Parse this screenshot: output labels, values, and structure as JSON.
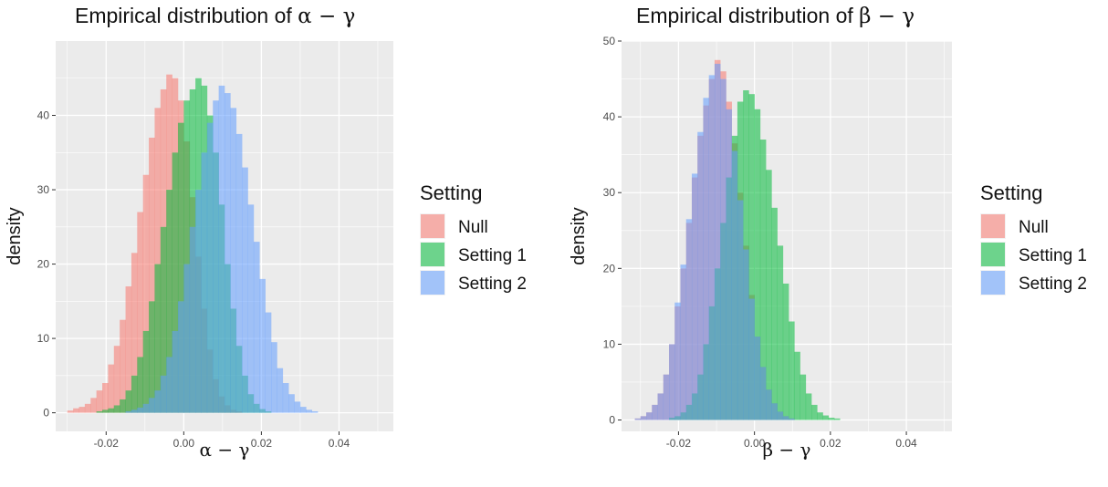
{
  "colors": {
    "panel_bg": "#EBEBEB",
    "grid": "#FFFFFF",
    "null": "#F8766D",
    "setting1": "#00BA38",
    "setting2": "#619CFF",
    "fill_alpha": 0.55
  },
  "chart_data": [
    {
      "type": "histogram",
      "title_prefix": "Empirical distribution of ",
      "title_expr": "α − γ",
      "xlabel": "α − γ",
      "ylabel": "density",
      "xlim": [
        -0.033,
        0.054
      ],
      "ylim": [
        -2.5,
        50
      ],
      "xticks": [
        -0.02,
        0.0,
        0.02,
        0.04
      ],
      "xtick_labels": [
        "-0.02",
        "0.00",
        "0.02",
        "0.04"
      ],
      "yticks": [
        0,
        10,
        20,
        30,
        40
      ],
      "ytick_labels": [
        "0",
        "10",
        "20",
        "30",
        "40"
      ],
      "grid": true,
      "legend": {
        "title": "Setting",
        "position": "right",
        "entries": [
          "Null",
          "Setting 1",
          "Setting 2"
        ]
      },
      "bin_width": 0.0015,
      "series": [
        {
          "name": "Null",
          "bin_start": -0.03,
          "values": [
            0.3,
            0.6,
            0.8,
            1.2,
            2,
            3,
            4,
            6.5,
            9,
            12.5,
            17,
            21.5,
            27,
            32,
            37,
            41,
            43.5,
            45.5,
            45,
            42,
            36.5,
            29,
            21,
            14,
            8.5,
            4.5,
            2.2,
            1,
            0.4,
            0.2
          ]
        },
        {
          "name": "Setting 1",
          "bin_start": -0.0225,
          "values": [
            0.2,
            0.4,
            0.6,
            1,
            1.8,
            3,
            5,
            7.5,
            11,
            15,
            20,
            25,
            30,
            35,
            39,
            42,
            43.5,
            45,
            44,
            40,
            35,
            28,
            20,
            14,
            9,
            5,
            2.5,
            1.2,
            0.5,
            0.2
          ]
        },
        {
          "name": "Setting 2",
          "bin_start": -0.015,
          "values": [
            0.2,
            0.4,
            0.7,
            1.2,
            2,
            3,
            5,
            7.5,
            11,
            15,
            20,
            25,
            30,
            35,
            39,
            42,
            44,
            43,
            41,
            37.5,
            33,
            28,
            23,
            18,
            13.5,
            9.5,
            6,
            4,
            2.5,
            1.5,
            0.8,
            0.4,
            0.2
          ]
        }
      ]
    },
    {
      "type": "histogram",
      "title_prefix": "Empirical distribution of ",
      "title_expr": "β − γ",
      "xlabel": "β − γ",
      "ylabel": "density",
      "xlim": [
        -0.035,
        0.052
      ],
      "ylim": [
        -1.5,
        50
      ],
      "xticks": [
        -0.02,
        0.0,
        0.02,
        0.04
      ],
      "xtick_labels": [
        "-0.02",
        "0.00",
        "0.02",
        "0.04"
      ],
      "yticks": [
        0,
        10,
        20,
        30,
        40,
        50
      ],
      "ytick_labels": [
        "0",
        "10",
        "20",
        "30",
        "40",
        "50"
      ],
      "grid": true,
      "legend": {
        "title": "Setting",
        "position": "right",
        "entries": [
          "Null",
          "Setting 1",
          "Setting 2"
        ]
      },
      "bin_width": 0.0015,
      "series": [
        {
          "name": "Null",
          "bin_start": -0.0315,
          "values": [
            0.2,
            0.5,
            1,
            2,
            3.5,
            6,
            10,
            15,
            20,
            26,
            32,
            37.5,
            41.5,
            45,
            47.5,
            46,
            42,
            36.5,
            30,
            23,
            16.5,
            11,
            7,
            4,
            2.2,
            1.1,
            0.5,
            0.2
          ]
        },
        {
          "name": "Setting 1",
          "bin_start": -0.0225,
          "values": [
            0.3,
            0.5,
            1,
            2,
            3.5,
            6,
            10,
            15,
            20,
            26,
            32,
            37.5,
            42,
            43.5,
            43,
            41,
            37,
            33,
            28,
            23,
            18,
            13,
            9,
            6,
            3.5,
            2,
            1,
            0.6,
            0.3,
            0.2
          ]
        },
        {
          "name": "Setting 2",
          "bin_start": -0.0315,
          "values": [
            0.2,
            0.5,
            1,
            2,
            3.5,
            6,
            10,
            15.5,
            20.5,
            26.5,
            32.5,
            38,
            42.5,
            45.5,
            47,
            45,
            41,
            35.5,
            29,
            22.5,
            16,
            11,
            7,
            4,
            2.2,
            1.1,
            0.5,
            0.2
          ]
        }
      ]
    }
  ]
}
